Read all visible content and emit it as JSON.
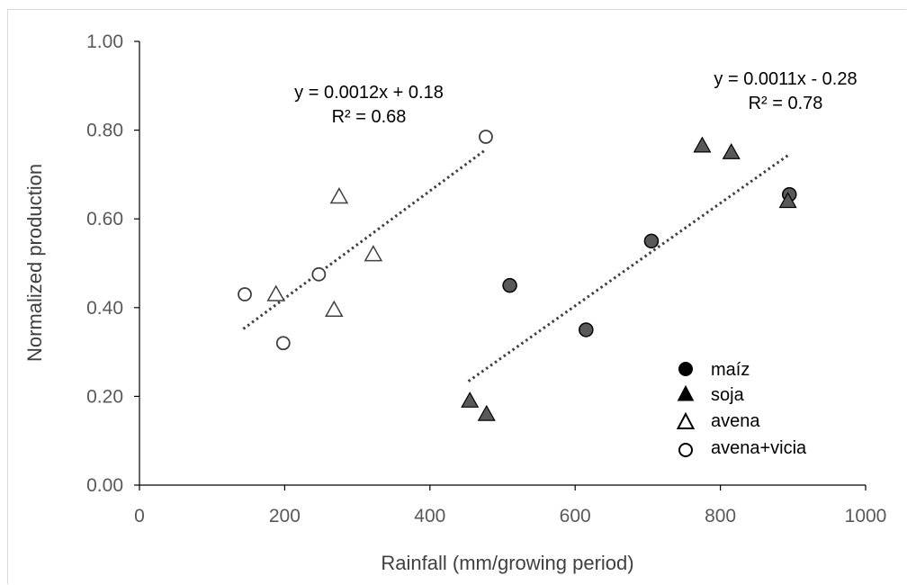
{
  "chart_data": {
    "type": "scatter",
    "xlabel": "Rainfall (mm/growing period)",
    "ylabel": "Normalized production",
    "xlim": [
      0,
      1000
    ],
    "ylim": [
      0,
      1
    ],
    "x_ticks": [
      "0",
      "200",
      "400",
      "600",
      "800",
      "1000"
    ],
    "y_ticks": [
      "0.00",
      "0.20",
      "0.40",
      "0.60",
      "0.80",
      "1.00"
    ],
    "grid": false,
    "legend_position": "bottom-right",
    "series": [
      {
        "name": "maíz",
        "marker": "filled-circle",
        "color": "#595959",
        "points": [
          [
            510,
            0.45
          ],
          [
            615,
            0.35
          ],
          [
            705,
            0.55
          ],
          [
            895,
            0.655
          ]
        ]
      },
      {
        "name": "soja",
        "marker": "filled-triangle",
        "color": "#595959",
        "points": [
          [
            455,
            0.19
          ],
          [
            478,
            0.16
          ],
          [
            775,
            0.765
          ],
          [
            815,
            0.75
          ],
          [
            893,
            0.64
          ]
        ]
      },
      {
        "name": "avena",
        "marker": "open-triangle",
        "color": "#404040",
        "points": [
          [
            188,
            0.43
          ],
          [
            268,
            0.395
          ],
          [
            275,
            0.65
          ],
          [
            322,
            0.52
          ]
        ]
      },
      {
        "name": "avena+vicia",
        "marker": "open-circle",
        "color": "#404040",
        "points": [
          [
            145,
            0.43
          ],
          [
            198,
            0.32
          ],
          [
            247,
            0.475
          ],
          [
            477,
            0.785
          ]
        ]
      }
    ],
    "trendlines": [
      {
        "equation": "y = 0.0012x + 0.18",
        "r2": "R² = 0.68",
        "style": "dotted",
        "from": [
          143,
          0.352
        ],
        "to": [
          476,
          0.755
        ]
      },
      {
        "equation": "y = 0.0011x - 0.28",
        "r2": "R² = 0.78",
        "style": "dotted",
        "from": [
          453,
          0.234
        ],
        "to": [
          893,
          0.743
        ]
      }
    ]
  }
}
